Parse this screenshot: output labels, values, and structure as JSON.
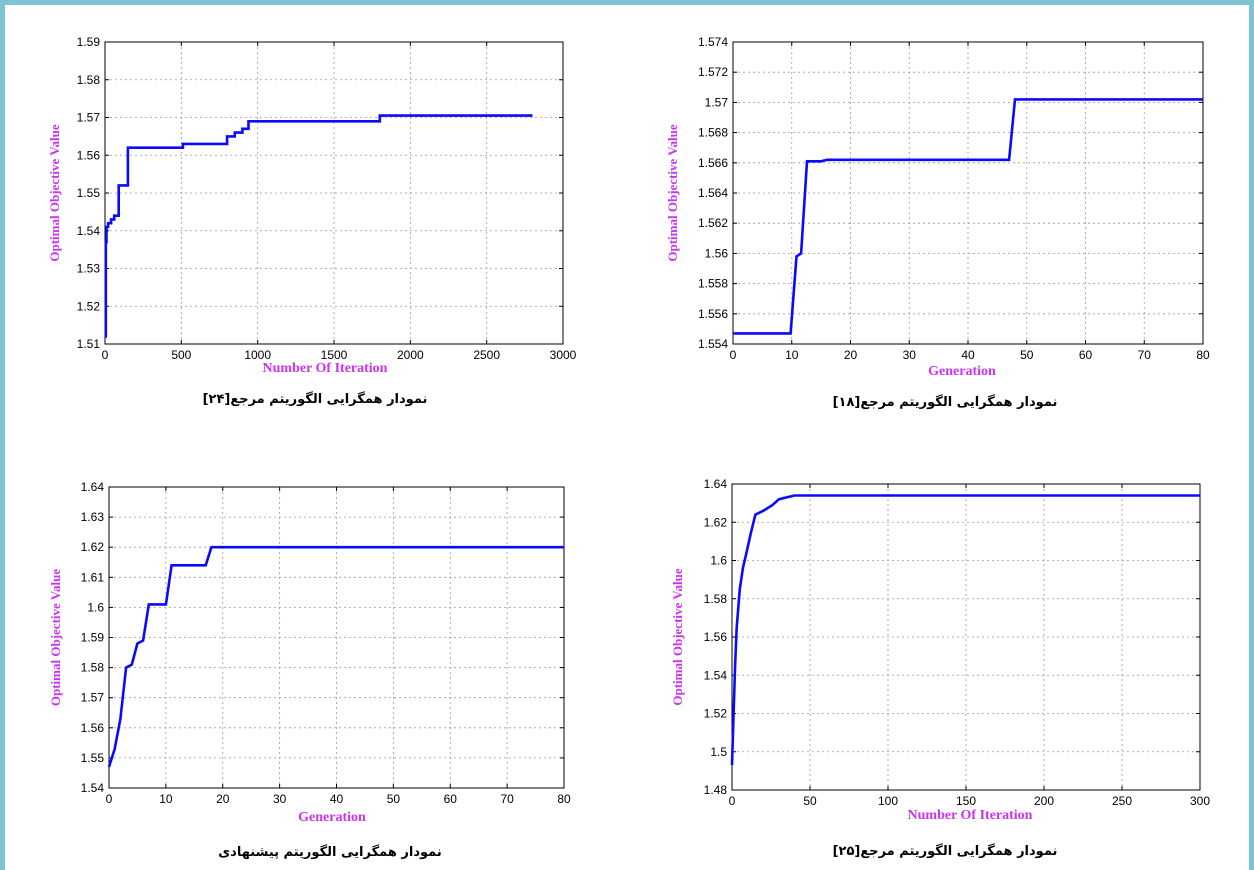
{
  "colors": {
    "label": "#cc33ee",
    "line": "#0a0aff",
    "grid": "#9a9a9a",
    "frame": "#7cc3d6"
  },
  "chart_data": [
    {
      "type": "line",
      "xlabel": "Number Of Iteration",
      "ylabel": "Optimal Objective Value",
      "caption": "نمودار همگرایی الگوریتم مرجع[۲۴]",
      "xlim": [
        0,
        3000
      ],
      "ylim": [
        1.51,
        1.59
      ],
      "xticks": [
        0,
        500,
        1000,
        1500,
        2000,
        2500,
        3000
      ],
      "yticks": [
        1.51,
        1.52,
        1.53,
        1.54,
        1.55,
        1.56,
        1.57,
        1.58,
        1.59
      ],
      "ytick_labels": [
        "1.51",
        "1.52",
        "1.53",
        "1.54",
        "1.55",
        "1.56",
        "1.57",
        "1.58",
        "1.59"
      ],
      "grid": true,
      "series": [
        {
          "x": [
            0,
            5,
            10,
            20,
            40,
            60,
            90,
            150,
            510,
            800,
            850,
            900,
            940,
            1800,
            2800
          ],
          "y": [
            1.512,
            1.537,
            1.541,
            1.542,
            1.543,
            1.544,
            1.552,
            1.562,
            1.563,
            1.565,
            1.566,
            1.567,
            1.569,
            1.5705,
            1.5705
          ],
          "step": true
        }
      ]
    },
    {
      "type": "line",
      "xlabel": "Generation",
      "ylabel": "Optimal Objective Value",
      "caption": "نمودار همگرایی الگوریتم مرجع[۱۸]",
      "xlim": [
        0,
        80
      ],
      "ylim": [
        1.554,
        1.574
      ],
      "xticks": [
        0,
        10,
        20,
        30,
        40,
        50,
        60,
        70,
        80
      ],
      "yticks": [
        1.554,
        1.556,
        1.558,
        1.56,
        1.562,
        1.564,
        1.566,
        1.568,
        1.57,
        1.572,
        1.574
      ],
      "ytick_labels": [
        "1.554",
        "1.556",
        "1.558",
        "1.56",
        "1.562",
        "1.564",
        "1.566",
        "1.568",
        "1.57",
        "1.572",
        "1.574"
      ],
      "grid": true,
      "series": [
        {
          "x": [
            0,
            9.8,
            10.8,
            11.6,
            12.6,
            15,
            16,
            47,
            48,
            80
          ],
          "y": [
            1.5547,
            1.5547,
            1.5598,
            1.56,
            1.5661,
            1.5661,
            1.5662,
            1.5662,
            1.5702,
            1.5702
          ],
          "step": false
        }
      ]
    },
    {
      "type": "line",
      "xlabel": "Generation",
      "ylabel": "Optimal Objective Value",
      "caption": "نمودار همگرایی الگوریتم پیشنهادی",
      "xlim": [
        0,
        80
      ],
      "ylim": [
        1.54,
        1.64
      ],
      "xticks": [
        0,
        10,
        20,
        30,
        40,
        50,
        60,
        70,
        80
      ],
      "yticks": [
        1.54,
        1.55,
        1.56,
        1.57,
        1.58,
        1.59,
        1.6,
        1.61,
        1.62,
        1.63,
        1.64
      ],
      "ytick_labels": [
        "1.54",
        "1.55",
        "1.56",
        "1.57",
        "1.58",
        "1.59",
        "1.6",
        "1.61",
        "1.62",
        "1.63",
        "1.64"
      ],
      "grid": true,
      "series": [
        {
          "x": [
            0,
            1,
            2,
            3,
            4,
            5,
            6,
            7,
            8,
            9,
            10,
            11,
            12,
            13,
            14,
            15,
            16,
            17,
            18,
            80
          ],
          "y": [
            1.547,
            1.553,
            1.563,
            1.58,
            1.581,
            1.588,
            1.589,
            1.601,
            1.601,
            1.601,
            1.601,
            1.614,
            1.614,
            1.614,
            1.614,
            1.614,
            1.614,
            1.614,
            1.62,
            1.62
          ],
          "step": false
        }
      ]
    },
    {
      "type": "line",
      "xlabel": "Number Of Iteration",
      "ylabel": "Optimal Objective Value",
      "caption": "نمودار همگرایی الگوریتم مرجع[۲۵]",
      "xlim": [
        0,
        300
      ],
      "ylim": [
        1.48,
        1.64
      ],
      "xticks": [
        0,
        50,
        100,
        150,
        200,
        250,
        300
      ],
      "yticks": [
        1.48,
        1.5,
        1.52,
        1.54,
        1.56,
        1.58,
        1.6,
        1.62,
        1.64
      ],
      "ytick_labels": [
        "1.48",
        "1.5",
        "1.52",
        "1.54",
        "1.56",
        "1.58",
        "1.6",
        "1.62",
        "1.64"
      ],
      "grid": true,
      "series": [
        {
          "x": [
            0,
            1,
            2,
            3,
            5,
            7,
            9,
            12,
            15,
            20,
            26,
            30,
            35,
            40,
            45,
            300
          ],
          "y": [
            1.493,
            1.52,
            1.545,
            1.565,
            1.585,
            1.596,
            1.603,
            1.614,
            1.624,
            1.626,
            1.629,
            1.632,
            1.633,
            1.634,
            1.634,
            1.634
          ],
          "step": false
        }
      ]
    }
  ]
}
